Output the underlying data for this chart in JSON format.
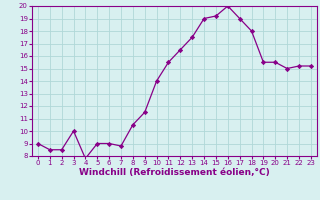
{
  "x": [
    0,
    1,
    2,
    3,
    4,
    5,
    6,
    7,
    8,
    9,
    10,
    11,
    12,
    13,
    14,
    15,
    16,
    17,
    18,
    19,
    20,
    21,
    22,
    23
  ],
  "y": [
    9,
    8.5,
    8.5,
    10,
    7.8,
    9,
    9,
    8.8,
    10.5,
    11.5,
    14,
    15.5,
    16.5,
    17.5,
    19,
    19.2,
    20,
    19,
    18,
    15.5,
    15.5,
    15,
    15.2,
    15.2
  ],
  "line_color": "#880088",
  "marker_color": "#880088",
  "bg_color": "#d8f0f0",
  "grid_color": "#b0d8d8",
  "xlabel": "Windchill (Refroidissement éolien,°C)",
  "ylim_min": 8,
  "ylim_max": 20,
  "xlim_min": -0.5,
  "xlim_max": 23.5,
  "yticks": [
    8,
    9,
    10,
    11,
    12,
    13,
    14,
    15,
    16,
    17,
    18,
    19,
    20
  ],
  "xticks": [
    0,
    1,
    2,
    3,
    4,
    5,
    6,
    7,
    8,
    9,
    10,
    11,
    12,
    13,
    14,
    15,
    16,
    17,
    18,
    19,
    20,
    21,
    22,
    23
  ],
  "tick_fontsize": 5,
  "xlabel_fontsize": 6.5
}
